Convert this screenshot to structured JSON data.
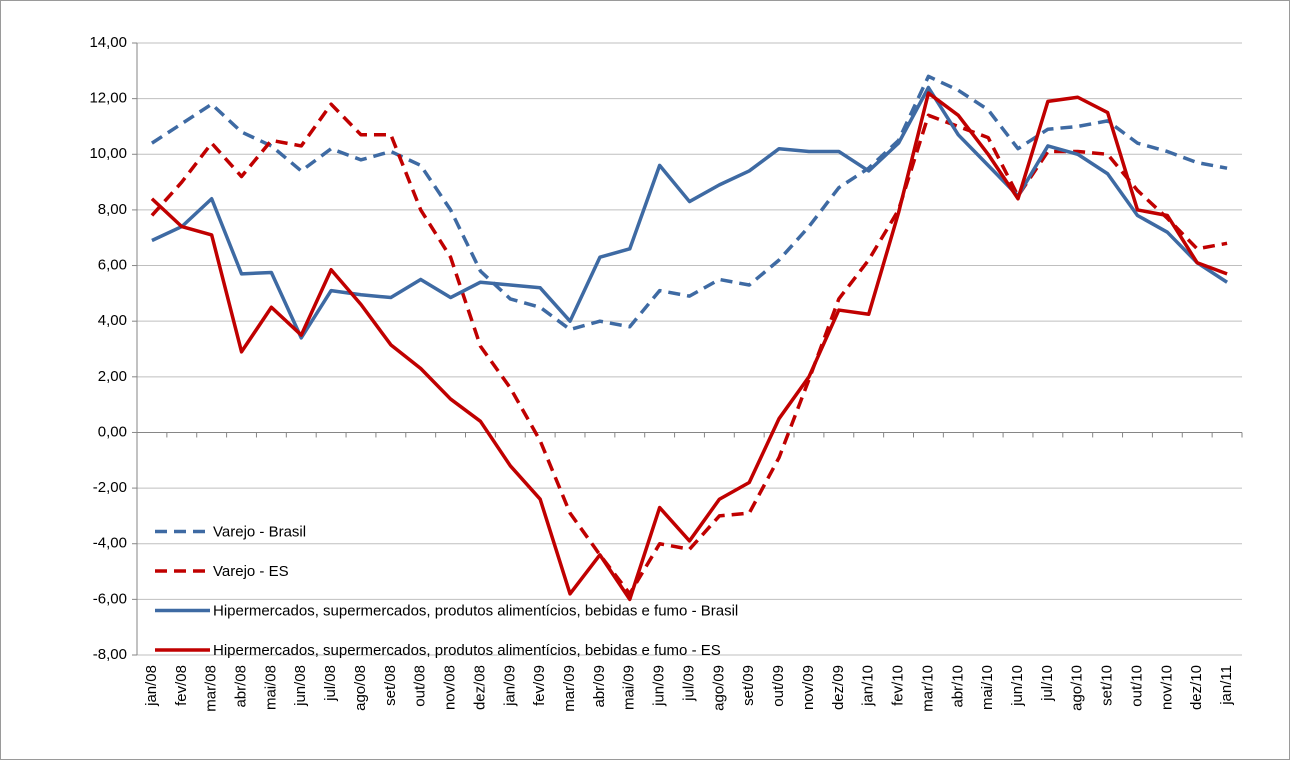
{
  "chart_data": {
    "type": "line",
    "categories": [
      "jan/08",
      "fev/08",
      "mar/08",
      "abr/08",
      "mai/08",
      "jun/08",
      "jul/08",
      "ago/08",
      "set/08",
      "out/08",
      "nov/08",
      "dez/08",
      "jan/09",
      "fev/09",
      "mar/09",
      "abr/09",
      "mai/09",
      "jun/09",
      "jul/09",
      "ago/09",
      "set/09",
      "out/09",
      "nov/09",
      "dez/09",
      "jan/10",
      "fev/10",
      "mar/10",
      "abr/10",
      "mai/10",
      "jun/10",
      "jul/10",
      "ago/10",
      "set/10",
      "out/10",
      "nov/10",
      "dez/10",
      "jan/11"
    ],
    "series": [
      {
        "name": "Varejo - Brasil",
        "color": "#3e6aa3",
        "style": "dashed",
        "values": [
          10.4,
          11.1,
          11.8,
          10.8,
          10.3,
          9.4,
          10.2,
          9.8,
          10.1,
          9.6,
          8.0,
          5.8,
          4.8,
          4.5,
          3.7,
          4.0,
          3.8,
          5.1,
          4.9,
          5.5,
          5.3,
          6.2,
          7.4,
          8.8,
          9.5,
          10.5,
          12.8,
          12.3,
          11.6,
          10.2,
          10.9,
          11.0,
          11.2,
          10.4,
          10.1,
          9.7,
          9.5
        ]
      },
      {
        "name": "Varejo - ES",
        "color": "#c00000",
        "style": "dashed",
        "values": [
          7.8,
          9.0,
          10.4,
          9.2,
          10.5,
          10.3,
          11.8,
          10.7,
          10.7,
          8.0,
          6.3,
          3.1,
          1.6,
          -0.3,
          -2.9,
          -4.4,
          -5.8,
          -4.0,
          -4.2,
          -3.0,
          -2.9,
          -0.9,
          1.9,
          4.8,
          6.2,
          8.0,
          11.4,
          11.0,
          10.6,
          8.5,
          10.1,
          10.1,
          10.0,
          8.7,
          7.7,
          6.6,
          6.8
        ]
      },
      {
        "name": "Hipermercados, supermercados, produtos alimentícios, bebidas e fumo - Brasil",
        "color": "#3e6aa3",
        "style": "solid",
        "values": [
          6.9,
          7.4,
          8.4,
          5.7,
          5.75,
          3.4,
          5.1,
          4.95,
          4.85,
          5.5,
          4.85,
          5.4,
          5.3,
          5.2,
          4.0,
          6.3,
          6.6,
          9.6,
          8.3,
          8.9,
          9.4,
          10.2,
          10.1,
          10.1,
          9.4,
          10.4,
          12.4,
          10.7,
          9.6,
          8.5,
          10.3,
          10.0,
          9.3,
          7.8,
          7.2,
          6.1,
          5.4
        ]
      },
      {
        "name": "Hipermercados, supermercados, produtos alimentícios, bebidas e fumo - ES",
        "color": "#c00000",
        "style": "solid",
        "values": [
          8.4,
          7.4,
          7.1,
          2.9,
          4.5,
          3.5,
          5.85,
          4.6,
          3.15,
          2.3,
          1.2,
          0.4,
          -1.2,
          -2.4,
          -5.8,
          -4.4,
          -6.0,
          -2.7,
          -3.9,
          -2.4,
          -1.8,
          0.5,
          2.0,
          4.4,
          4.25,
          7.9,
          12.2,
          11.4,
          10.0,
          8.4,
          11.9,
          12.05,
          11.5,
          8.0,
          7.8,
          6.1,
          5.7
        ]
      }
    ],
    "ylim": [
      -8,
      14
    ],
    "yticks": [
      {
        "value": -8,
        "label": "-8,00"
      },
      {
        "value": -6,
        "label": "-6,00"
      },
      {
        "value": -4,
        "label": "-4,00"
      },
      {
        "value": -2,
        "label": "-2,00"
      },
      {
        "value": 0,
        "label": "0,00"
      },
      {
        "value": 2,
        "label": "2,00"
      },
      {
        "value": 4,
        "label": "4,00"
      },
      {
        "value": 6,
        "label": "6,00"
      },
      {
        "value": 8,
        "label": "8,00"
      },
      {
        "value": 10,
        "label": "10,00"
      },
      {
        "value": 12,
        "label": "12,00"
      },
      {
        "value": 14,
        "label": "14,00"
      }
    ],
    "grid": true,
    "legend": "lower left"
  }
}
